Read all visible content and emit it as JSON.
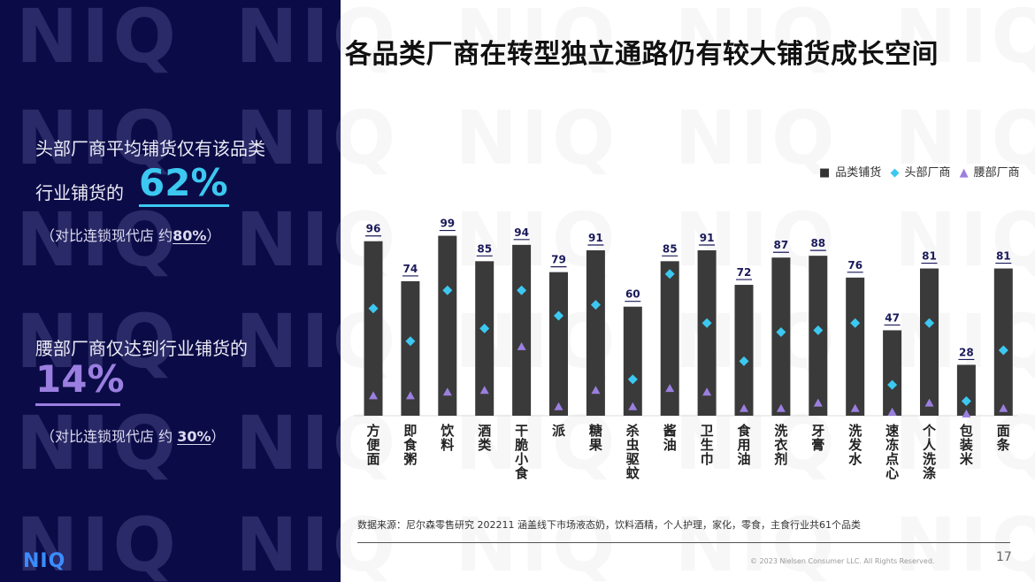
{
  "watermark": "NIQ",
  "title": "各品类厂商在转型独立通路仍有较大铺货成长空间",
  "left_panel": {
    "head_line1": "头部厂商平均铺货仅有该品类",
    "head_line2": "行业铺货的",
    "head_value": "62%",
    "head_compare_prefix": "（对比连锁现代店  约",
    "head_compare_value": "80%",
    "head_compare_suffix": "）",
    "waist_line1": "腰部厂商仅达到行业铺货的",
    "waist_value": "14%",
    "waist_compare_prefix": "（对比连锁现代店  约 ",
    "waist_compare_value": "30%",
    "waist_compare_suffix": "）",
    "logo": "NIQ"
  },
  "colors": {
    "bar": "#3a3a3a",
    "head": "#3cc8f0",
    "waist": "#9b7fe0",
    "panel": "#0b0c47",
    "label": "#1a1a5a"
  },
  "chart_data": {
    "type": "bar",
    "title": "各品类厂商在转型独立通路仍有较大铺货成长空间",
    "legend_position": "top-right",
    "ylim": [
      0,
      100
    ],
    "categories": [
      "方便面",
      "即食粥",
      "饮料",
      "酒类",
      "干脆小食",
      "派",
      "糖果",
      "杀虫驱蚊",
      "酱油",
      "卫生巾",
      "食用油",
      "洗衣剂",
      "牙膏",
      "洗发水",
      "速冻点心",
      "个人洗涤",
      "包装米",
      "面条"
    ],
    "series": [
      {
        "name": "品类铺货",
        "marker": "bar",
        "values": [
          96,
          74,
          99,
          85,
          94,
          79,
          91,
          60,
          85,
          91,
          72,
          87,
          88,
          76,
          47,
          81,
          28,
          81
        ],
        "labeled": true
      },
      {
        "name": "头部厂商",
        "marker": "diamond",
        "values": [
          59,
          41,
          69,
          48,
          69,
          55,
          61,
          20,
          78,
          51,
          30,
          46,
          47,
          51,
          17,
          51,
          8,
          36
        ]
      },
      {
        "name": "腰部厂商",
        "marker": "triangle",
        "values": [
          11,
          11,
          13,
          14,
          38,
          5,
          14,
          5,
          15,
          13,
          4,
          4,
          7,
          4,
          2,
          7,
          1,
          4
        ]
      }
    ]
  },
  "footer": {
    "source": "数据来源：尼尔森零售研究  202211 涵盖线下市场液态奶，饮料酒精，个人护理，家化，零食，主食行业共61个品类",
    "copyright": "© 2023  Nielsen Consumer LLC. All Rights Reserved.",
    "page_number": "17"
  }
}
